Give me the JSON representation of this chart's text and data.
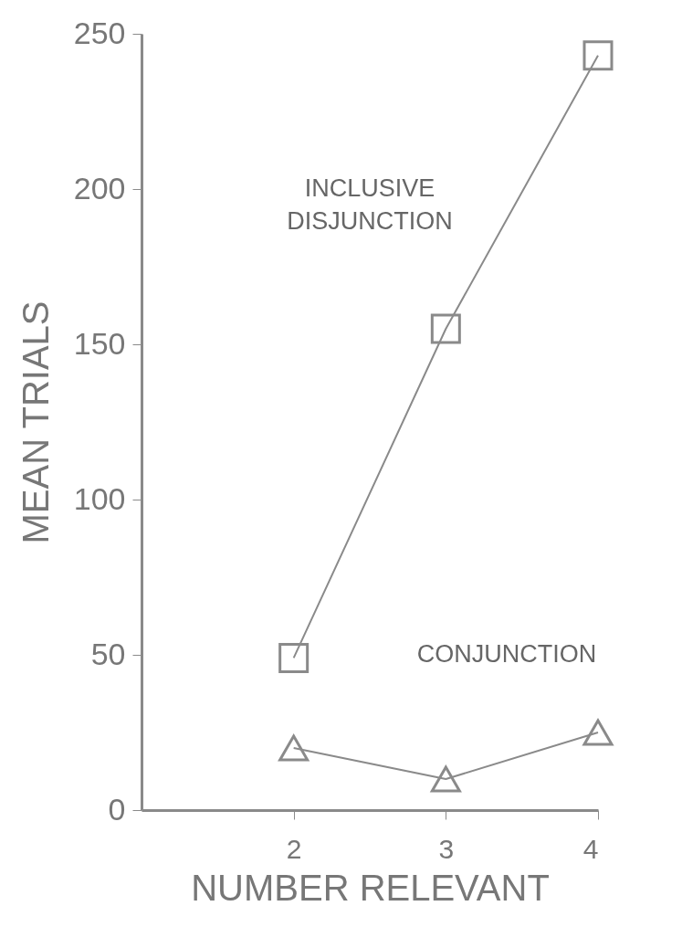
{
  "chart_data": {
    "type": "line",
    "xlabel": "NUMBER  RELEVANT",
    "ylabel": "MEAN TRIALS",
    "x": [
      2,
      3,
      4
    ],
    "series": [
      {
        "name": "INCLUSIVE DISJUNCTION",
        "color": "#8a8a8a",
        "marker": "square",
        "values": [
          49,
          155,
          243
        ]
      },
      {
        "name": "CONJUNCTION",
        "color": "#8a8a8a",
        "marker": "triangle",
        "values": [
          20,
          10,
          25
        ]
      }
    ],
    "xlim": [
      1,
      4
    ],
    "xticks": [
      2,
      3,
      4
    ],
    "ylim": [
      0,
      250
    ],
    "yticks": [
      0,
      50,
      100,
      150,
      200,
      250
    ],
    "grid": false,
    "legend": false,
    "line_style": "solid"
  }
}
